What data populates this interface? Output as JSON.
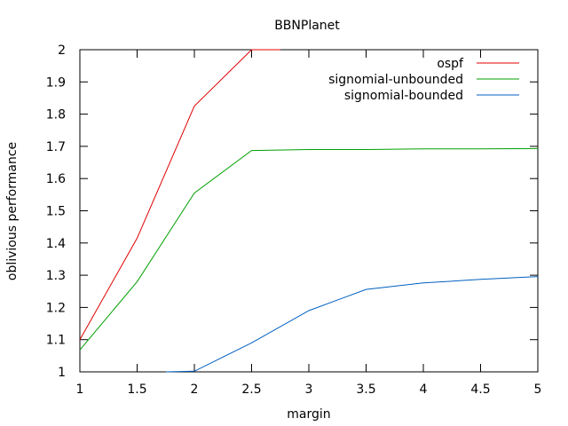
{
  "chart_data": {
    "type": "line",
    "title": "BBNPlanet",
    "xlabel": "margin",
    "ylabel": "oblivious performance",
    "xlim": [
      1,
      5
    ],
    "ylim": [
      1,
      2
    ],
    "x_ticks": [
      "1",
      "1.5",
      "2",
      "2.5",
      "3",
      "3.5",
      "4",
      "4.5",
      "5"
    ],
    "y_ticks": [
      "1",
      "1.1",
      "1.2",
      "1.3",
      "1.4",
      "1.5",
      "1.6",
      "1.7",
      "1.8",
      "1.9",
      "2"
    ],
    "grid": false,
    "legend_position": "top-right",
    "series": [
      {
        "name": "ospf",
        "color": "#e00000",
        "points": [
          [
            1,
            1.1
          ],
          [
            1.5,
            1.415
          ],
          [
            2,
            1.825
          ],
          [
            2.5,
            2.0
          ],
          [
            2.75,
            2.0
          ]
        ]
      },
      {
        "name": "signomial-unbounded",
        "color": "#00a000",
        "points": [
          [
            1,
            1.068
          ],
          [
            1.5,
            1.28
          ],
          [
            2,
            1.555
          ],
          [
            2.5,
            1.687
          ],
          [
            3,
            1.69
          ],
          [
            3.5,
            1.69
          ],
          [
            4,
            1.692
          ],
          [
            4.5,
            1.692
          ],
          [
            5,
            1.693
          ]
        ]
      },
      {
        "name": "signomial-bounded",
        "color": "#0060c0",
        "points": [
          [
            1.75,
            1.0
          ],
          [
            2,
            1.002
          ],
          [
            2.5,
            1.09
          ],
          [
            3,
            1.19
          ],
          [
            3.5,
            1.256
          ],
          [
            4,
            1.276
          ],
          [
            4.5,
            1.287
          ],
          [
            5,
            1.296
          ]
        ]
      }
    ]
  }
}
